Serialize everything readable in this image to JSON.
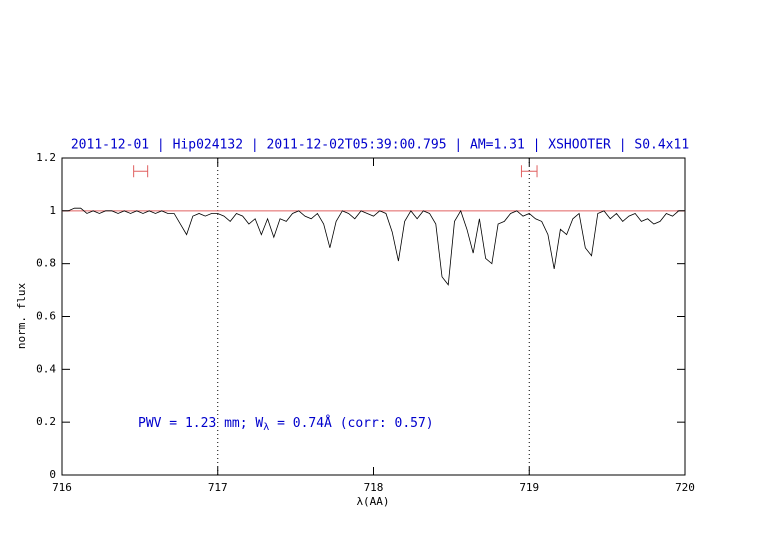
{
  "chart_data": {
    "type": "line",
    "title": "2011-12-01 | Hip024132 | 2011-12-02T05:39:00.795 | AM=1.31 | XSHOOTER | S0.4x11",
    "x_label": "λ(AA)",
    "y_label": "norm. flux",
    "annotation": {
      "prefix": "PWV = 1.23 mm; W",
      "sub": "λ",
      "suffix": " = 0.74Å (corr: 0.57)"
    },
    "x": [
      716.0,
      716.04,
      716.08,
      716.12,
      716.16,
      716.2,
      716.24,
      716.28,
      716.32,
      716.36,
      716.4,
      716.44,
      716.48,
      716.52,
      716.56,
      716.6,
      716.64,
      716.68,
      716.72,
      716.76,
      716.8,
      716.84,
      716.88,
      716.92,
      716.96,
      717.0,
      717.04,
      717.08,
      717.12,
      717.16,
      717.2,
      717.24,
      717.28,
      717.32,
      717.36,
      717.4,
      717.44,
      717.48,
      717.52,
      717.56,
      717.6,
      717.64,
      717.68,
      717.72,
      717.76,
      717.8,
      717.84,
      717.88,
      717.92,
      717.96,
      718.0,
      718.04,
      718.08,
      718.12,
      718.16,
      718.2,
      718.24,
      718.28,
      718.32,
      718.36,
      718.4,
      718.44,
      718.48,
      718.52,
      718.56,
      718.6,
      718.64,
      718.68,
      718.72,
      718.76,
      718.8,
      718.84,
      718.88,
      718.92,
      718.96,
      719.0,
      719.04,
      719.08,
      719.12,
      719.16,
      719.2,
      719.24,
      719.28,
      719.32,
      719.36,
      719.4,
      719.44,
      719.48,
      719.52,
      719.56,
      719.6,
      719.64,
      719.68,
      719.72,
      719.76,
      719.8,
      719.84,
      719.88,
      719.92,
      719.96,
      720.0
    ],
    "series": [
      {
        "color": "#000000",
        "values": [
          1.0,
          1.0,
          1.01,
          1.01,
          0.99,
          1.0,
          0.99,
          1.0,
          1.0,
          0.99,
          1.0,
          0.99,
          1.0,
          0.99,
          1.0,
          0.99,
          1.0,
          0.99,
          0.99,
          0.95,
          0.91,
          0.98,
          0.99,
          0.98,
          0.99,
          0.99,
          0.98,
          0.96,
          0.99,
          0.98,
          0.95,
          0.97,
          0.91,
          0.97,
          0.9,
          0.97,
          0.96,
          0.99,
          1.0,
          0.98,
          0.97,
          0.99,
          0.95,
          0.86,
          0.96,
          1.0,
          0.99,
          0.97,
          1.0,
          0.99,
          0.98,
          1.0,
          0.99,
          0.92,
          0.81,
          0.96,
          1.0,
          0.97,
          1.0,
          0.99,
          0.95,
          0.75,
          0.72,
          0.96,
          1.0,
          0.93,
          0.84,
          0.97,
          0.82,
          0.8,
          0.95,
          0.96,
          0.99,
          1.0,
          0.98,
          0.99,
          0.97,
          0.96,
          0.91,
          0.78,
          0.93,
          0.91,
          0.97,
          0.99,
          0.86,
          0.83,
          0.99,
          1.0,
          0.97,
          0.99,
          0.96,
          0.98,
          0.99,
          0.96,
          0.97,
          0.95,
          0.96,
          0.99,
          0.98,
          1.0,
          1.0
        ]
      }
    ],
    "continuum": 1,
    "continuum_color": "#e06060",
    "vlines": [
      717,
      719
    ],
    "intervals": [
      [
        716.46,
        716.55
      ],
      [
        718.95,
        719.05
      ]
    ],
    "interval_y": 1.15,
    "interval_color": "#e06060",
    "xlim": [
      716,
      720
    ],
    "ylim": [
      0,
      1.2
    ],
    "xticks": [
      716,
      717,
      718,
      719,
      720
    ],
    "yticks": [
      0,
      0.2,
      0.4,
      0.6,
      0.8,
      1,
      1.2
    ]
  }
}
